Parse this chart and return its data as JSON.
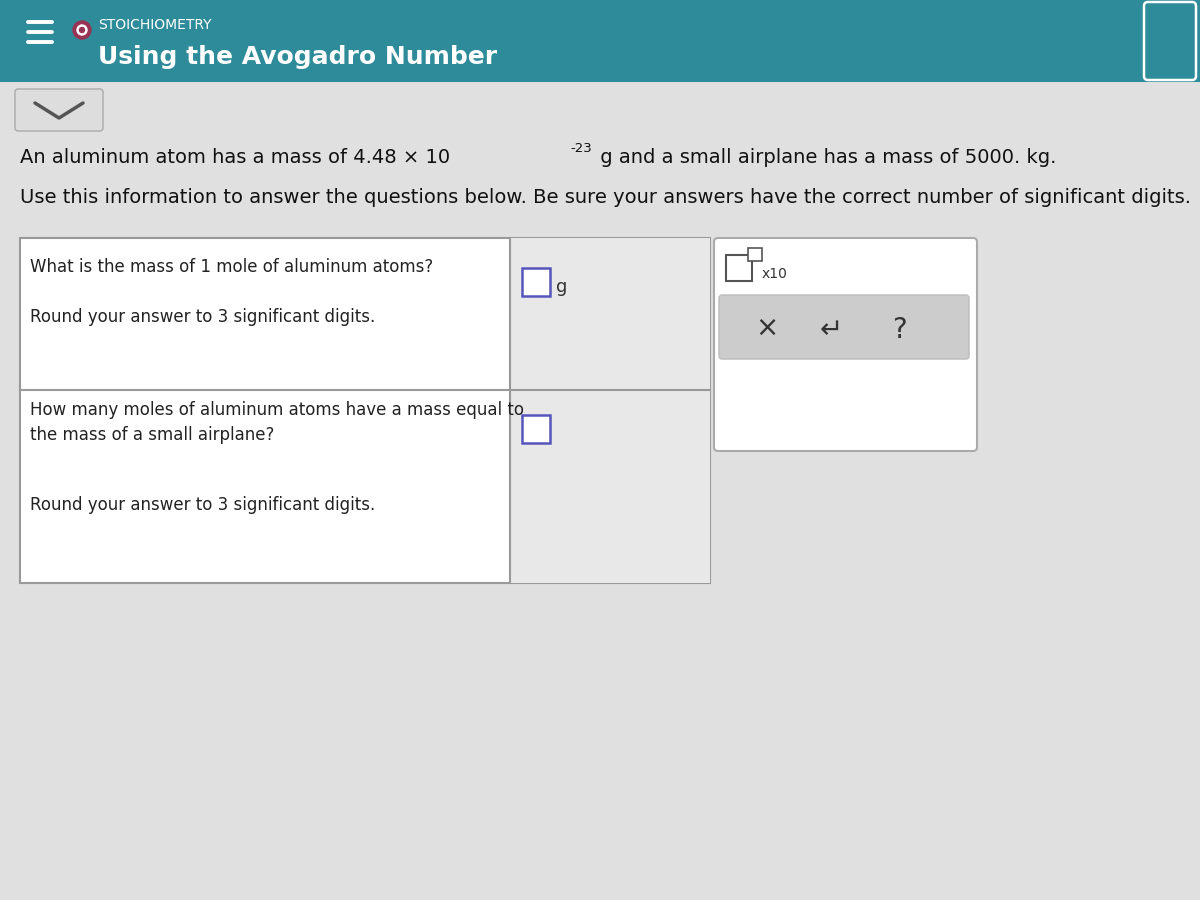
{
  "header_bg_color": "#2e8b99",
  "header_text_color": "#ffffff",
  "bg_color": "#c8c8c8",
  "content_bg_color": "#e0e0e0",
  "stoichiometry_label": "STOICHIOMETRY",
  "title": "Using the Avogadro Number",
  "intro_line1_part1": "An aluminum atom has a mass of 4.48 × 10",
  "intro_line1_exp": "-23",
  "intro_line1_part2": " g and a small airplane has a mass of 5000. kg.",
  "intro_line2": "Use this information to answer the questions below. Be sure your answers have the correct number of significant digits.",
  "q1_text1": "What is the mass of 1 mole of aluminum atoms?",
  "q1_text2": "Round your answer to 3 significant digits.",
  "q1_unit": "g",
  "q2_text1": "How many moles of aluminum atoms have a mass equal to",
  "q2_text2": "the mass of a small airplane?",
  "q2_text3": "Round your answer to 3 significant digits.",
  "box_bg": "#ffffff",
  "box_border": "#aaaaaa",
  "input_bg": "#f0f0f0",
  "panel_bg": "#cccccc",
  "circle_color": "#993355",
  "hamburger_color": "#ffffff",
  "x10_label": "x10",
  "x_symbol": "×",
  "undo_symbol": "↵",
  "question_symbol": "?"
}
